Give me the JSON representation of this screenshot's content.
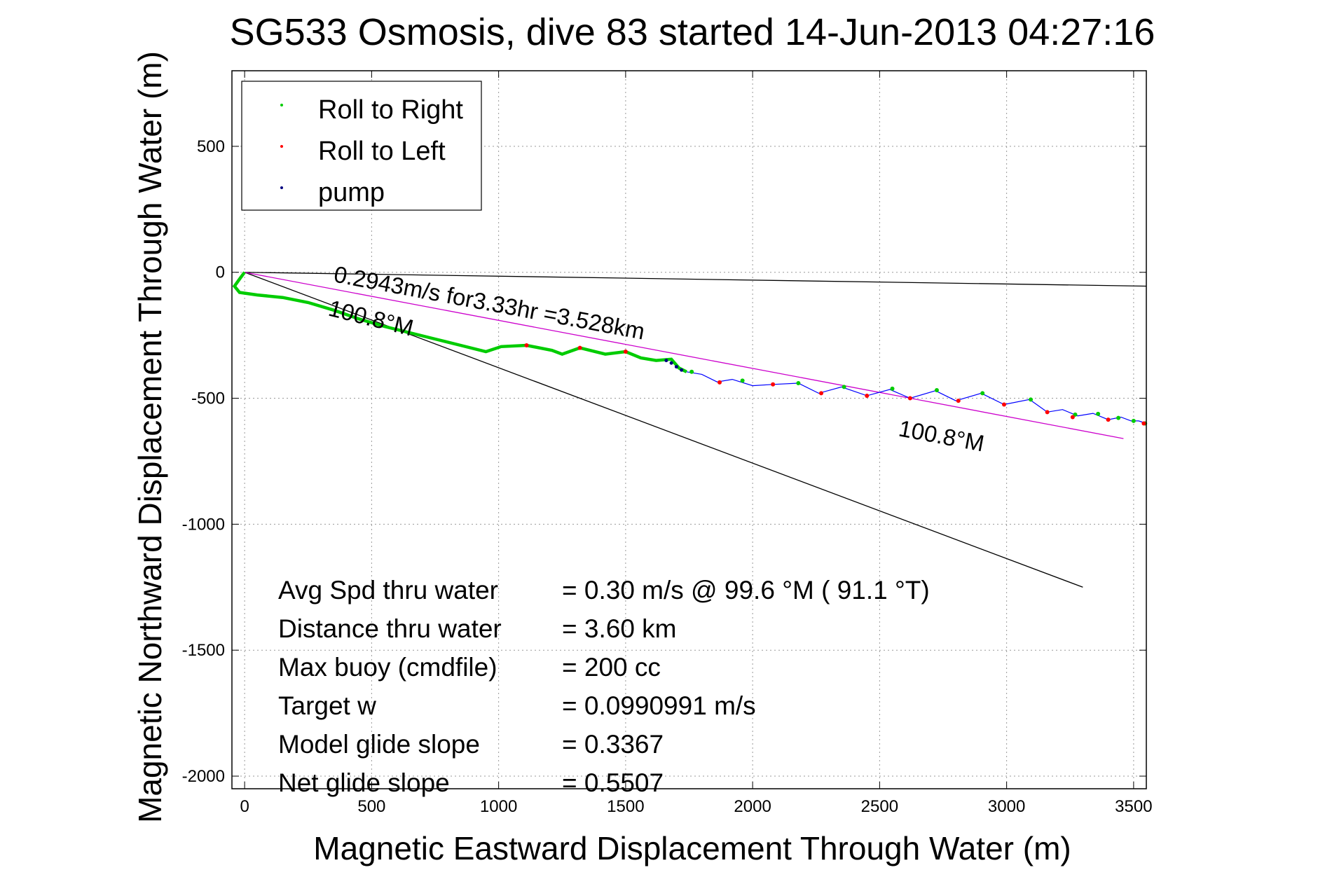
{
  "chart_data": {
    "type": "scatter",
    "title": "SG533 Osmosis, dive 83 started 14-Jun-2013 04:27:16",
    "xlabel": "Magnetic Eastward Displacement Through Water (m)",
    "ylabel": "Magnetic Northward Displacement Through Water (m)",
    "xlim": [
      -50,
      3550
    ],
    "ylim": [
      -2050,
      800
    ],
    "xticks": [
      0,
      500,
      1000,
      1500,
      2000,
      2500,
      3000,
      3500
    ],
    "yticks": [
      500,
      0,
      -500,
      -1000,
      -1500,
      -2000
    ],
    "xtick_labels": [
      "0",
      "500",
      "1000",
      "1500",
      "2000",
      "2500",
      "3000",
      "3500"
    ],
    "ytick_labels": [
      "500",
      "0",
      "-500",
      "-1000",
      "-1500",
      "-2000"
    ],
    "grid": true,
    "legend_position": "top-left",
    "legend": [
      {
        "label": "Roll to Right",
        "color": "#00cc00"
      },
      {
        "label": "Roll to Left",
        "color": "#ff0000"
      },
      {
        "label": "pump",
        "color": "#000080"
      }
    ],
    "track": {
      "color_near": "#00cc00",
      "color_far": "#0000ff",
      "points": [
        [
          0,
          0
        ],
        [
          -15,
          -20
        ],
        [
          -40,
          -55
        ],
        [
          -20,
          -80
        ],
        [
          50,
          -90
        ],
        [
          150,
          -100
        ],
        [
          250,
          -120
        ],
        [
          350,
          -150
        ],
        [
          450,
          -185
        ],
        [
          550,
          -215
        ],
        [
          650,
          -240
        ],
        [
          750,
          -265
        ],
        [
          850,
          -290
        ],
        [
          950,
          -315
        ],
        [
          1010,
          -295
        ],
        [
          1110,
          -290
        ],
        [
          1210,
          -310
        ],
        [
          1250,
          -325
        ],
        [
          1320,
          -300
        ],
        [
          1420,
          -325
        ],
        [
          1500,
          -315
        ],
        [
          1560,
          -340
        ],
        [
          1620,
          -350
        ],
        [
          1680,
          -345
        ],
        [
          1710,
          -380
        ],
        [
          1740,
          -395
        ],
        [
          1800,
          -405
        ],
        [
          1860,
          -435
        ],
        [
          1920,
          -425
        ],
        [
          2000,
          -450
        ],
        [
          2080,
          -445
        ],
        [
          2180,
          -440
        ],
        [
          2260,
          -480
        ],
        [
          2350,
          -455
        ],
        [
          2450,
          -490
        ],
        [
          2540,
          -465
        ],
        [
          2620,
          -500
        ],
        [
          2720,
          -470
        ],
        [
          2800,
          -510
        ],
        [
          2900,
          -480
        ],
        [
          2990,
          -525
        ],
        [
          3090,
          -505
        ],
        [
          3160,
          -555
        ],
        [
          3220,
          -545
        ],
        [
          3280,
          -570
        ],
        [
          3340,
          -560
        ],
        [
          3400,
          -585
        ],
        [
          3450,
          -575
        ],
        [
          3490,
          -590
        ],
        [
          3520,
          -590
        ],
        [
          3550,
          -600
        ]
      ],
      "roll_right": [
        [
          2360,
          -455
        ],
        [
          2550,
          -462
        ],
        [
          2725,
          -468
        ],
        [
          2905,
          -480
        ],
        [
          3095,
          -505
        ],
        [
          3270,
          -565
        ],
        [
          3360,
          -562
        ],
        [
          3440,
          -578
        ],
        [
          3500,
          -590
        ],
        [
          3545,
          -600
        ],
        [
          1960,
          -430
        ],
        [
          2180,
          -440
        ],
        [
          1760,
          -395
        ]
      ],
      "roll_left": [
        [
          1110,
          -290
        ],
        [
          1320,
          -300
        ],
        [
          1500,
          -315
        ],
        [
          1870,
          -437
        ],
        [
          2270,
          -480
        ],
        [
          2450,
          -490
        ],
        [
          2620,
          -500
        ],
        [
          2810,
          -510
        ],
        [
          2990,
          -525
        ],
        [
          3160,
          -555
        ],
        [
          3260,
          -575
        ],
        [
          3400,
          -585
        ],
        [
          3540,
          -600
        ],
        [
          2080,
          -445
        ]
      ],
      "pump": [
        [
          1660,
          -350
        ],
        [
          1680,
          -360
        ],
        [
          1700,
          -375
        ],
        [
          1720,
          -388
        ]
      ]
    },
    "lines": [
      {
        "name": "black-line-1",
        "color": "#000000",
        "from": [
          0,
          0
        ],
        "to": [
          3550,
          -55
        ]
      },
      {
        "name": "black-line-2",
        "color": "#000000",
        "from": [
          0,
          0
        ],
        "to": [
          3300,
          -1250
        ]
      },
      {
        "name": "magenta-line",
        "color": "#cc00cc",
        "from": [
          0,
          0
        ],
        "to": [
          3460,
          -660
        ]
      }
    ],
    "annotations": [
      {
        "text": "0.2943m/s for3.33hr =3.528km"
      },
      {
        "text": "100.8°M"
      },
      {
        "text": "100.8°M"
      }
    ],
    "stats": [
      {
        "label": "Avg Spd thru water",
        "value": "=  0.30 m/s @  99.6 °M ( 91.1 °T)"
      },
      {
        "label": "Distance thru water",
        "value": "=  3.60 km"
      },
      {
        "label": "Max buoy (cmdfile)",
        "value": "= 200 cc"
      },
      {
        "label": "Target w",
        "value": "= 0.0990991 m/s"
      },
      {
        "label": "Model glide slope",
        "value": "= 0.3367"
      },
      {
        "label": "Net glide slope",
        "value": "= 0.5507"
      }
    ]
  }
}
